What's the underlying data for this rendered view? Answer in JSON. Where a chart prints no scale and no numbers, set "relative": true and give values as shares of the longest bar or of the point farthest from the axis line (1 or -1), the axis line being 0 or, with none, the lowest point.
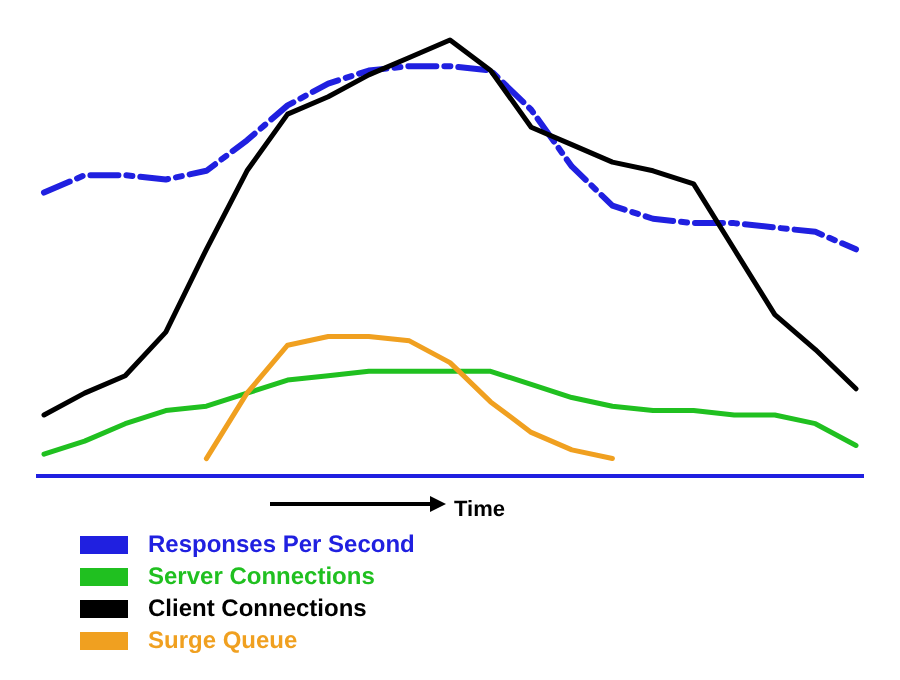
{
  "chart_data": {
    "type": "line",
    "relative": true,
    "xlabel": "Time",
    "legend": "bottom left",
    "marker": "none",
    "categories": [
      null,
      null,
      null,
      null,
      null,
      null,
      null,
      null,
      null,
      null,
      null,
      null,
      null,
      null,
      null,
      null,
      null,
      null,
      null,
      null,
      null
    ],
    "series": [
      {
        "name": "Responses Per Second",
        "color": "#2020e0",
        "line_style": "dashed",
        "values": [
          0.65,
          0.69,
          0.69,
          0.68,
          0.7,
          0.77,
          0.85,
          0.9,
          0.93,
          0.94,
          0.94,
          0.93,
          0.84,
          0.71,
          0.62,
          0.59,
          0.58,
          0.58,
          0.57,
          0.56,
          0.52
        ]
      },
      {
        "name": "Server Connections",
        "color": "#20c020",
        "line_style": "solid",
        "values": [
          0.05,
          0.08,
          0.12,
          0.15,
          0.16,
          0.19,
          0.22,
          0.23,
          0.24,
          0.24,
          0.24,
          0.24,
          0.21,
          0.18,
          0.16,
          0.15,
          0.15,
          0.14,
          0.14,
          0.12,
          0.07
        ]
      },
      {
        "name": "Client Connections",
        "color": "#000000",
        "line_style": "solid",
        "values": [
          0.14,
          0.19,
          0.23,
          0.33,
          0.52,
          0.7,
          0.83,
          0.87,
          0.92,
          0.96,
          1.0,
          0.93,
          0.8,
          0.76,
          0.72,
          0.7,
          0.67,
          0.52,
          0.37,
          0.29,
          0.2
        ]
      },
      {
        "name": "Surge Queue",
        "color": "#f0a020",
        "line_style": "solid",
        "values": [
          null,
          null,
          null,
          null,
          0.04,
          0.19,
          0.3,
          0.32,
          0.32,
          0.31,
          0.26,
          0.17,
          0.1,
          0.06,
          0.04,
          null,
          null,
          null,
          null,
          null,
          null
        ]
      }
    ]
  }
}
